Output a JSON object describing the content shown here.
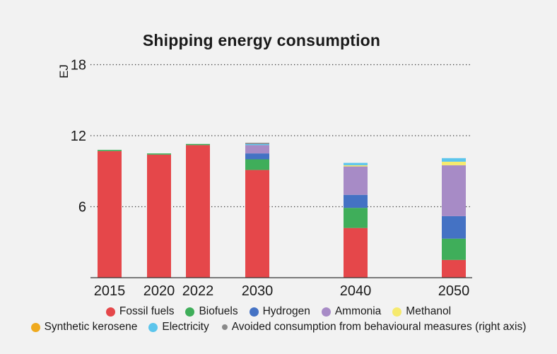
{
  "chart_data": {
    "type": "bar",
    "stacked": true,
    "title": "Shipping energy consumption",
    "ylabel": "EJ",
    "xlabel": "",
    "categories": [
      "2015",
      "2020",
      "2022",
      "2030",
      "2040",
      "2050"
    ],
    "yticks": [
      6,
      12,
      18
    ],
    "ylim": [
      0,
      18
    ],
    "grid": "horizontal dotted",
    "legend_position": "bottom",
    "series": [
      {
        "name": "Fossil fuels",
        "color": "#e5474a",
        "values": [
          10.7,
          10.4,
          11.2,
          9.1,
          4.2,
          1.5
        ]
      },
      {
        "name": "Biofuels",
        "color": "#3fae5a",
        "values": [
          0.1,
          0.1,
          0.1,
          0.9,
          1.7,
          1.8
        ]
      },
      {
        "name": "Hydrogen",
        "color": "#4472c4",
        "values": [
          0,
          0,
          0,
          0.5,
          1.1,
          1.9
        ]
      },
      {
        "name": "Ammonia",
        "color": "#a78bc6",
        "values": [
          0,
          0,
          0,
          0.7,
          2.4,
          4.3
        ]
      },
      {
        "name": "Methanol",
        "color": "#f6ea6e",
        "values": [
          0,
          0,
          0,
          0,
          0.1,
          0.3
        ]
      },
      {
        "name": "Synthetic kerosene",
        "color": "#efaa1f",
        "values": [
          0,
          0,
          0,
          0,
          0,
          0
        ]
      },
      {
        "name": "Electricity",
        "color": "#5cc5ec",
        "values": [
          0,
          0,
          0,
          0.1,
          0.2,
          0.3
        ]
      },
      {
        "name": "Avoided consumption from behavioural measures (right axis)",
        "color": "#8a8a8a",
        "values": [
          0,
          0,
          0,
          0.1,
          0,
          0
        ]
      }
    ]
  }
}
